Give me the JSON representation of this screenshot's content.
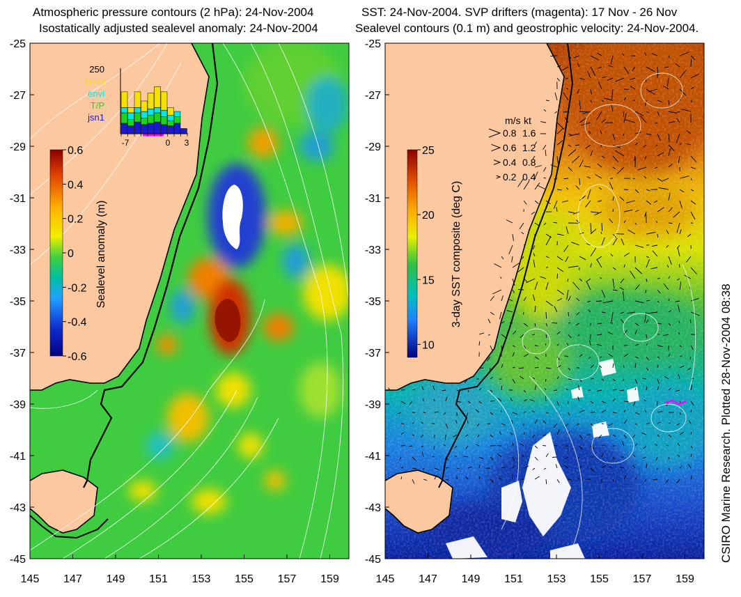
{
  "left_panel": {
    "title_line1": "Atmospheric pressure contours (2 hPa): 24-Nov-2004",
    "title_line2": "Isostatically adjusted sealevel anomaly: 24-Nov-2004",
    "colorbar": {
      "label": "Sealevel anomaly (m)",
      "ticks": [
        "0.6",
        "0.4",
        "0.2",
        "0",
        "-0.2",
        "-0.4",
        "-0.6"
      ],
      "range": [
        -0.6,
        0.6
      ]
    },
    "inset": {
      "top_value": "250",
      "legend": [
        {
          "label": "GFO",
          "color": "#f5e100"
        },
        {
          "label": "envi",
          "color": "#00e6e6"
        },
        {
          "label": "T/P",
          "color": "#1fd21f"
        },
        {
          "label": "jsn1",
          "color": "#1a1acc"
        }
      ],
      "x_ticks": [
        "-7",
        "0",
        "3"
      ],
      "bars": [
        {
          "jsn1": 40,
          "tp": 40,
          "envi": 20,
          "gfo": 60
        },
        {
          "jsn1": 30,
          "tp": 25,
          "envi": 25,
          "gfo": 20
        },
        {
          "jsn1": 45,
          "tp": 35,
          "envi": 20,
          "gfo": 60
        },
        {
          "jsn1": 35,
          "tp": 25,
          "envi": 25,
          "gfo": 40
        },
        {
          "jsn1": 40,
          "tp": 30,
          "envi": 25,
          "gfo": 60
        },
        {
          "jsn1": 45,
          "tp": 35,
          "envi": 20,
          "gfo": 80
        },
        {
          "jsn1": 35,
          "tp": 30,
          "envi": 25,
          "gfo": 70
        },
        {
          "jsn1": 30,
          "tp": 20,
          "envi": 20,
          "gfo": 30
        },
        {
          "jsn1": 40,
          "tp": 25,
          "envi": 20,
          "gfo": 0
        },
        {
          "jsn1": 20,
          "tp": 0,
          "envi": 0,
          "gfo": 0
        }
      ]
    }
  },
  "right_panel": {
    "title_line1": "SST: 24-Nov-2004. SVP drifters (magenta): 17 Nov - 26 Nov",
    "title_line2": "Sealevel contours (0.1 m) and geostrophic velocity: 24-Nov-2004.",
    "colorbar": {
      "label": "3-day SST composite (deg C)",
      "ticks": [
        "25",
        "20",
        "15",
        "10"
      ],
      "range": [
        9,
        25
      ]
    },
    "speed_legend": {
      "header_ms": "m/s",
      "header_kt": "kt",
      "rows": [
        {
          "ms": "0.8",
          "kt": "1.6"
        },
        {
          "ms": "0.6",
          "kt": "1.2"
        },
        {
          "ms": "0.4",
          "kt": "0.8"
        },
        {
          "ms": "0.2",
          "kt": "0.4"
        }
      ]
    }
  },
  "axes": {
    "lat_ticks": [
      "-25",
      "-27",
      "-29",
      "-31",
      "-33",
      "-35",
      "-37",
      "-39",
      "-41",
      "-43",
      "-45"
    ],
    "lon_ticks": [
      "145",
      "147",
      "149",
      "151",
      "153",
      "155",
      "157",
      "159"
    ]
  },
  "side_text": "CSIRO Marine Research. Plotted 28-Nov-2004 08:38",
  "colors": {
    "land": "#fcc8a0",
    "coast": "#000000",
    "contour": "#ffffff",
    "drifter": "#ff00ff"
  }
}
